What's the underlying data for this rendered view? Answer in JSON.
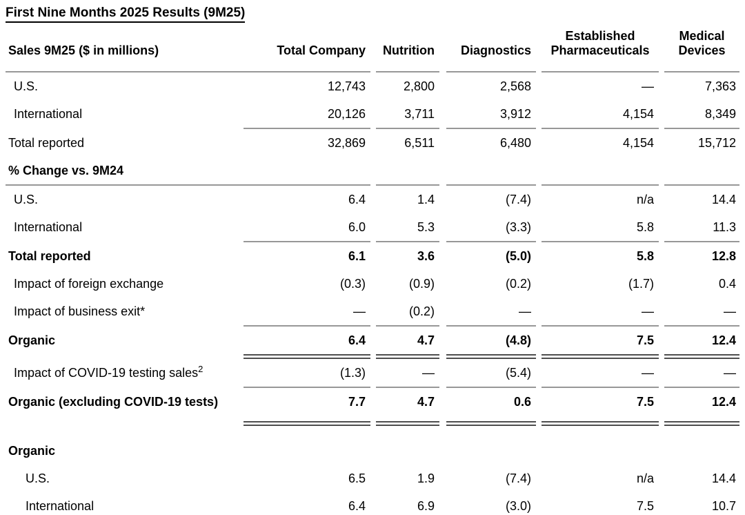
{
  "title": "First Nine Months 2025 Results (9M25)",
  "table": {
    "header": {
      "label": "Sales 9M25 ($ in millions)",
      "columns": [
        "Total Company",
        "Nutrition",
        "Diagnostics",
        "Established Pharmaceuticals",
        "Medical Devices"
      ]
    },
    "rows": {
      "sales_us": {
        "label": "U.S.",
        "values": [
          "12,743",
          "2,800",
          "2,568",
          "—",
          "7,363"
        ]
      },
      "sales_intl": {
        "label": "International",
        "values": [
          "20,126",
          "3,711",
          "3,912",
          "4,154",
          "8,349"
        ]
      },
      "sales_total": {
        "label": "Total reported",
        "values": [
          "32,869",
          "6,511",
          "6,480",
          "4,154",
          "15,712"
        ]
      },
      "pct_header": {
        "label": "% Change vs. 9M24"
      },
      "chg_us": {
        "label": "U.S.",
        "values": [
          "6.4",
          "1.4",
          "(7.4)",
          "n/a",
          "14.4"
        ]
      },
      "chg_intl": {
        "label": "International",
        "values": [
          "6.0",
          "5.3",
          "(3.3)",
          "5.8",
          "11.3"
        ]
      },
      "chg_total": {
        "label": "Total reported",
        "values": [
          "6.1",
          "3.6",
          "(5.0)",
          "5.8",
          "12.8"
        ]
      },
      "fx": {
        "label": "Impact of foreign exchange",
        "values": [
          "(0.3)",
          "(0.9)",
          "(0.2)",
          "(1.7)",
          "0.4"
        ]
      },
      "biz_exit": {
        "label": "Impact of business exit*",
        "values": [
          "—",
          "(0.2)",
          "—",
          "—",
          "—"
        ]
      },
      "organic": {
        "label": "Organic",
        "values": [
          "6.4",
          "4.7",
          "(4.8)",
          "7.5",
          "12.4"
        ]
      },
      "covid": {
        "label": "Impact of COVID-19 testing sales",
        "sup": "2",
        "values": [
          "(1.3)",
          "—",
          "(5.4)",
          "—",
          "—"
        ]
      },
      "organic_excl": {
        "label": "Organic (excluding COVID-19 tests)",
        "values": [
          "7.7",
          "4.7",
          "0.6",
          "7.5",
          "12.4"
        ]
      },
      "organic_header": {
        "label": "Organic"
      },
      "org_us": {
        "label": "U.S.",
        "values": [
          "6.5",
          "1.9",
          "(7.4)",
          "n/a",
          "14.4"
        ]
      },
      "org_intl": {
        "label": "International",
        "values": [
          "6.4",
          "6.9",
          "(3.0)",
          "7.5",
          "10.7"
        ]
      }
    }
  },
  "colors": {
    "text": "#000000",
    "rule": "#979797",
    "double_rule": "#4d4d4d"
  }
}
